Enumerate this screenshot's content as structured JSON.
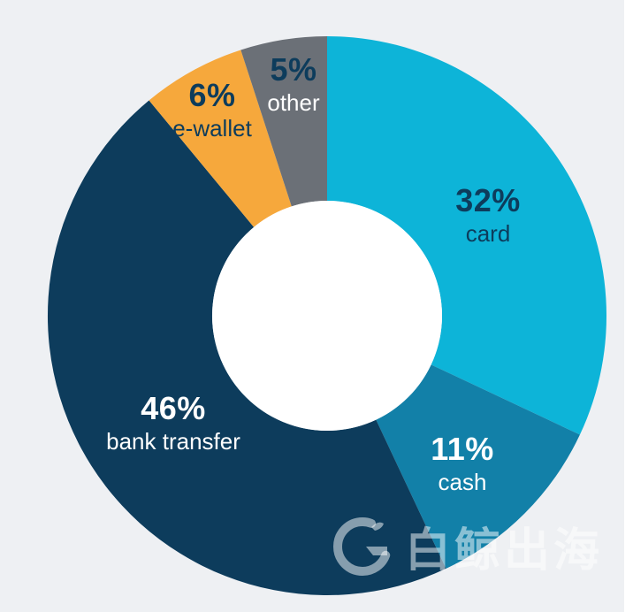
{
  "chart_data": {
    "type": "pie",
    "subtype": "donut",
    "title": "",
    "unit": "%",
    "total": 100,
    "direction": "clockwise",
    "start_angle_deg": 0,
    "inner_radius_ratio": 0.41,
    "legend_position": "on-slices",
    "slices": [
      {
        "label": "card",
        "value": 32,
        "pct_text": "32%",
        "color": "#0db4d8",
        "pct_color": "#0d3c5c",
        "name_color": "#0d3c5c"
      },
      {
        "label": "cash",
        "value": 11,
        "pct_text": "11%",
        "color": "#1280a8",
        "pct_color": "#ffffff",
        "name_color": "#ffffff"
      },
      {
        "label": "bank transfer",
        "value": 46,
        "pct_text": "46%",
        "color": "#0d3c5c",
        "pct_color": "#ffffff",
        "name_color": "#ffffff"
      },
      {
        "label": "e-wallet",
        "value": 6,
        "pct_text": "6%",
        "color": "#f6a83c",
        "pct_color": "#0d3c5c",
        "name_color": "#0d3c5c"
      },
      {
        "label": "other",
        "value": 5,
        "pct_text": "5%",
        "color": "#6b7077",
        "pct_color": "#0d3c5c",
        "name_color": "#ffffff"
      }
    ],
    "hole_color": "#ffffff",
    "background_color": "#eef0f3"
  },
  "watermark": {
    "text": "白鲸出海"
  }
}
